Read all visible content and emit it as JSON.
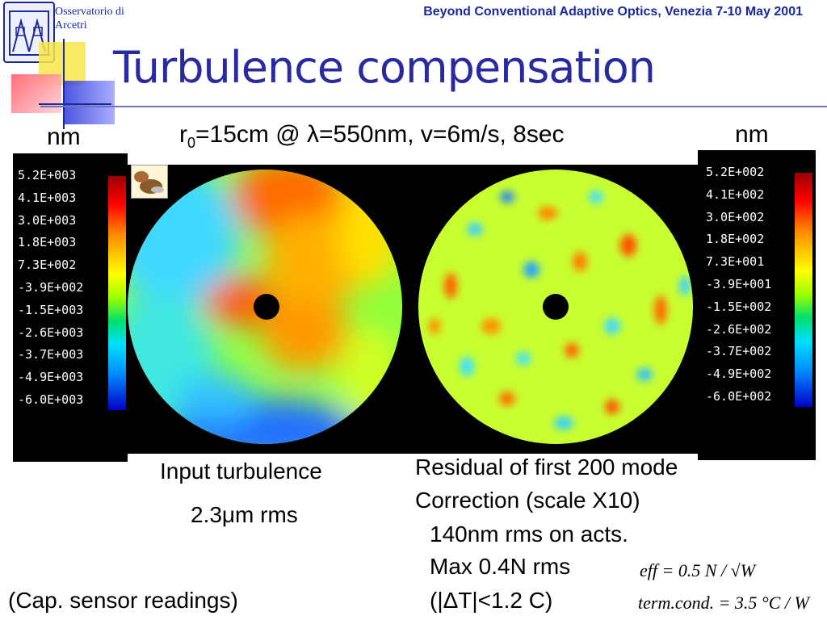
{
  "header": {
    "institution_line1": "Osservatorio di",
    "institution_line2": "Arcetri",
    "conference": "Beyond Conventional Adaptive Optics, Venezia 7-10 May 2001",
    "title": "Turbulence compensation"
  },
  "subtitle": {
    "r_symbol": "r",
    "r_subscript": "0",
    "rest": "=15cm @ λ=550nm, v=6m/s, 8sec"
  },
  "left_panel": {
    "unit": "nm",
    "scale_ticks": [
      "5.2E+003",
      "4.1E+003",
      "3.0E+003",
      "1.8E+003",
      "7.3E+002",
      "-3.9E+002",
      "-1.5E+003",
      "-2.6E+003",
      "-3.7E+003",
      "-4.9E+003",
      "-6.0E+003"
    ],
    "caption_line1": "Input turbulence",
    "caption_line2": "2.3μm rms",
    "caption_line3": "(Cap. sensor readings)"
  },
  "right_panel": {
    "unit": "nm",
    "scale_ticks": [
      "5.2E+002",
      "4.1E+002",
      "3.0E+002",
      "1.8E+002",
      "7.3E+001",
      "-3.9E+001",
      "-1.5E+002",
      "-2.6E+002",
      "-3.7E+002",
      "-4.9E+002",
      "-6.0E+002"
    ],
    "caption_line1": "Residual of first 200 mode",
    "caption_line2": "Correction (scale X10)",
    "caption_line3": "140nm rms on acts.",
    "caption_line4": "Max 0.4N rms",
    "caption_line5": "(|ΔT|<1.2 C)"
  },
  "formulas": {
    "eff": "eff = 0.5 N / √W",
    "term": "term.cond. = 3.5 °C / W"
  }
}
